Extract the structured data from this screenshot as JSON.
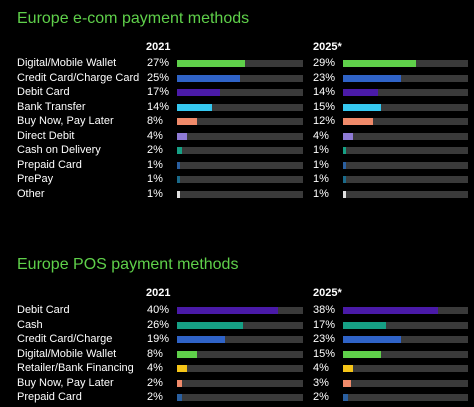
{
  "charts": [
    {
      "title": "Europe e-com payment methods",
      "years": [
        "2021",
        "2025*"
      ],
      "rows": [
        {
          "label": "Digital/Mobile Wallet",
          "v2021": "27%",
          "v2025": "29%",
          "color": "#5fd04a"
        },
        {
          "label": "Credit Card/Charge Card",
          "v2021": "25%",
          "v2025": "23%",
          "color": "#2f63c7"
        },
        {
          "label": "Debit Card",
          "v2021": "17%",
          "v2025": "14%",
          "color": "#4a1aa8"
        },
        {
          "label": "Bank Transfer",
          "v2021": "14%",
          "v2025": "15%",
          "color": "#35c8f0"
        },
        {
          "label": "Buy Now, Pay Later",
          "v2021": "8%",
          "v2025": "12%",
          "color": "#f08a6a"
        },
        {
          "label": "Direct Debit",
          "v2021": "4%",
          "v2025": "4%",
          "color": "#8f7bd6"
        },
        {
          "label": "Cash on Delivery",
          "v2021": "2%",
          "v2025": "1%",
          "color": "#16a085"
        },
        {
          "label": "Prepaid Card",
          "v2021": "1%",
          "v2025": "1%",
          "color": "#2a5fa0"
        },
        {
          "label": "PrePay",
          "v2021": "1%",
          "v2025": "1%",
          "color": "#1a6a8a"
        },
        {
          "label": "Other",
          "v2021": "1%",
          "v2025": "1%",
          "color": "#e0e0e0"
        }
      ]
    },
    {
      "title": "Europe POS payment methods",
      "years": [
        "2021",
        "2025*"
      ],
      "rows": [
        {
          "label": "Debit Card",
          "v2021": "40%",
          "v2025": "38%",
          "color": "#4a1aa8"
        },
        {
          "label": "Cash",
          "v2021": "26%",
          "v2025": "17%",
          "color": "#16a085"
        },
        {
          "label": "Credit Card/Charge",
          "v2021": "19%",
          "v2025": "23%",
          "color": "#2f63c7"
        },
        {
          "label": "Digital/Mobile Wallet",
          "v2021": "8%",
          "v2025": "15%",
          "color": "#5fd04a"
        },
        {
          "label": "Retailer/Bank Financing",
          "v2021": "4%",
          "v2025": "4%",
          "color": "#f5c518"
        },
        {
          "label": "Buy Now, Pay Later",
          "v2021": "2%",
          "v2025": "3%",
          "color": "#f08a6a"
        },
        {
          "label": "Prepaid Card",
          "v2021": "2%",
          "v2025": "2%",
          "color": "#2a5fa0"
        }
      ]
    }
  ],
  "chart_data": [
    {
      "type": "bar",
      "title": "Europe e-com payment methods",
      "categories": [
        "Digital/Mobile Wallet",
        "Credit Card/Charge Card",
        "Debit Card",
        "Bank Transfer",
        "Buy Now, Pay Later",
        "Direct Debit",
        "Cash on Delivery",
        "Prepaid Card",
        "PrePay",
        "Other"
      ],
      "series": [
        {
          "name": "2021",
          "values": [
            27,
            25,
            17,
            14,
            8,
            4,
            2,
            1,
            1,
            1
          ]
        },
        {
          "name": "2025*",
          "values": [
            29,
            23,
            14,
            15,
            12,
            4,
            1,
            1,
            1,
            1
          ]
        }
      ],
      "ylim": [
        0,
        100
      ]
    },
    {
      "type": "bar",
      "title": "Europe POS payment methods",
      "categories": [
        "Debit Card",
        "Cash",
        "Credit Card/Charge",
        "Digital/Mobile Wallet",
        "Retailer/Bank Financing",
        "Buy Now, Pay Later",
        "Prepaid Card"
      ],
      "series": [
        {
          "name": "2021",
          "values": [
            40,
            26,
            19,
            8,
            4,
            2,
            2
          ]
        },
        {
          "name": "2025*",
          "values": [
            38,
            17,
            23,
            15,
            4,
            3,
            2
          ]
        }
      ],
      "ylim": [
        0,
        100
      ]
    }
  ]
}
